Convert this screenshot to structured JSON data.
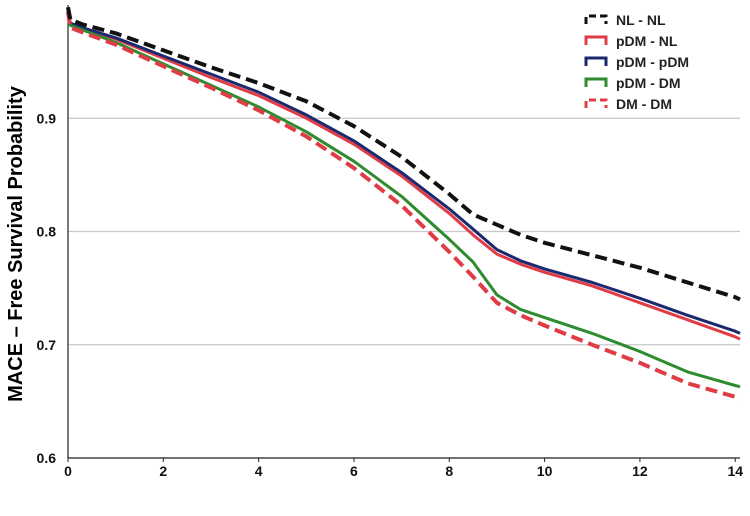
{
  "chart_data": {
    "type": "line",
    "title": "",
    "xlabel": "",
    "ylabel": "MACE – Free Survival Probability",
    "xlim": [
      0,
      14.1
    ],
    "ylim": [
      0.6,
      1.0
    ],
    "x_ticks": [
      0,
      2,
      4,
      6,
      8,
      10,
      12,
      14
    ],
    "y_ticks": [
      0.6,
      0.7,
      0.8,
      0.9
    ],
    "grid": "horizontal",
    "legend_position": "top-right",
    "series": [
      {
        "name": "NL - NL",
        "color": "#111111",
        "dash": "dashed",
        "x": [
          0,
          0.05,
          0.3,
          1,
          2,
          3,
          4,
          5,
          6,
          7,
          8,
          8.5,
          9,
          9.5,
          10,
          11,
          12,
          13,
          14,
          14.1
        ],
        "y": [
          0.998,
          0.987,
          0.983,
          0.975,
          0.96,
          0.945,
          0.931,
          0.915,
          0.893,
          0.866,
          0.833,
          0.815,
          0.806,
          0.797,
          0.79,
          0.779,
          0.768,
          0.755,
          0.742,
          0.74
        ]
      },
      {
        "name": "pDM - NL",
        "color": "#e03c46",
        "dash": "solid",
        "x": [
          0,
          0.05,
          0.3,
          1,
          2,
          3,
          4,
          5,
          6,
          7,
          8,
          8.5,
          9,
          9.5,
          10,
          11,
          12,
          13,
          14,
          14.1
        ],
        "y": [
          0.995,
          0.983,
          0.979,
          0.97,
          0.953,
          0.936,
          0.92,
          0.9,
          0.877,
          0.849,
          0.816,
          0.797,
          0.78,
          0.771,
          0.764,
          0.752,
          0.737,
          0.722,
          0.707,
          0.705
        ]
      },
      {
        "name": "pDM - pDM",
        "color": "#1b2a6e",
        "dash": "solid",
        "x": [
          0,
          0.05,
          0.3,
          1,
          2,
          3,
          4,
          5,
          6,
          7,
          8,
          8.5,
          9,
          9.5,
          10,
          11,
          12,
          13,
          14,
          14.1
        ],
        "y": [
          0.996,
          0.984,
          0.98,
          0.971,
          0.955,
          0.939,
          0.923,
          0.903,
          0.88,
          0.852,
          0.82,
          0.802,
          0.784,
          0.774,
          0.767,
          0.755,
          0.741,
          0.726,
          0.712,
          0.71
        ]
      },
      {
        "name": "pDM - DM",
        "color": "#2e8b2e",
        "dash": "solid",
        "x": [
          0,
          0.05,
          0.3,
          1,
          2,
          3,
          4,
          5,
          6,
          7,
          8,
          8.5,
          9,
          9.5,
          10,
          11,
          12,
          13,
          14,
          14.1
        ],
        "y": [
          0.995,
          0.982,
          0.978,
          0.967,
          0.948,
          0.929,
          0.91,
          0.888,
          0.862,
          0.831,
          0.793,
          0.773,
          0.744,
          0.731,
          0.724,
          0.71,
          0.694,
          0.676,
          0.664,
          0.663
        ]
      },
      {
        "name": "DM - DM",
        "color": "#e03c46",
        "dash": "dashed",
        "x": [
          0,
          0.05,
          0.3,
          1,
          2,
          3,
          4,
          5,
          6,
          7,
          8,
          8.5,
          9,
          9.5,
          10,
          11,
          12,
          13,
          14,
          14.1
        ],
        "y": [
          0.994,
          0.98,
          0.976,
          0.965,
          0.946,
          0.927,
          0.907,
          0.884,
          0.856,
          0.823,
          0.782,
          0.76,
          0.737,
          0.726,
          0.717,
          0.7,
          0.684,
          0.666,
          0.654,
          0.652
        ]
      }
    ]
  }
}
